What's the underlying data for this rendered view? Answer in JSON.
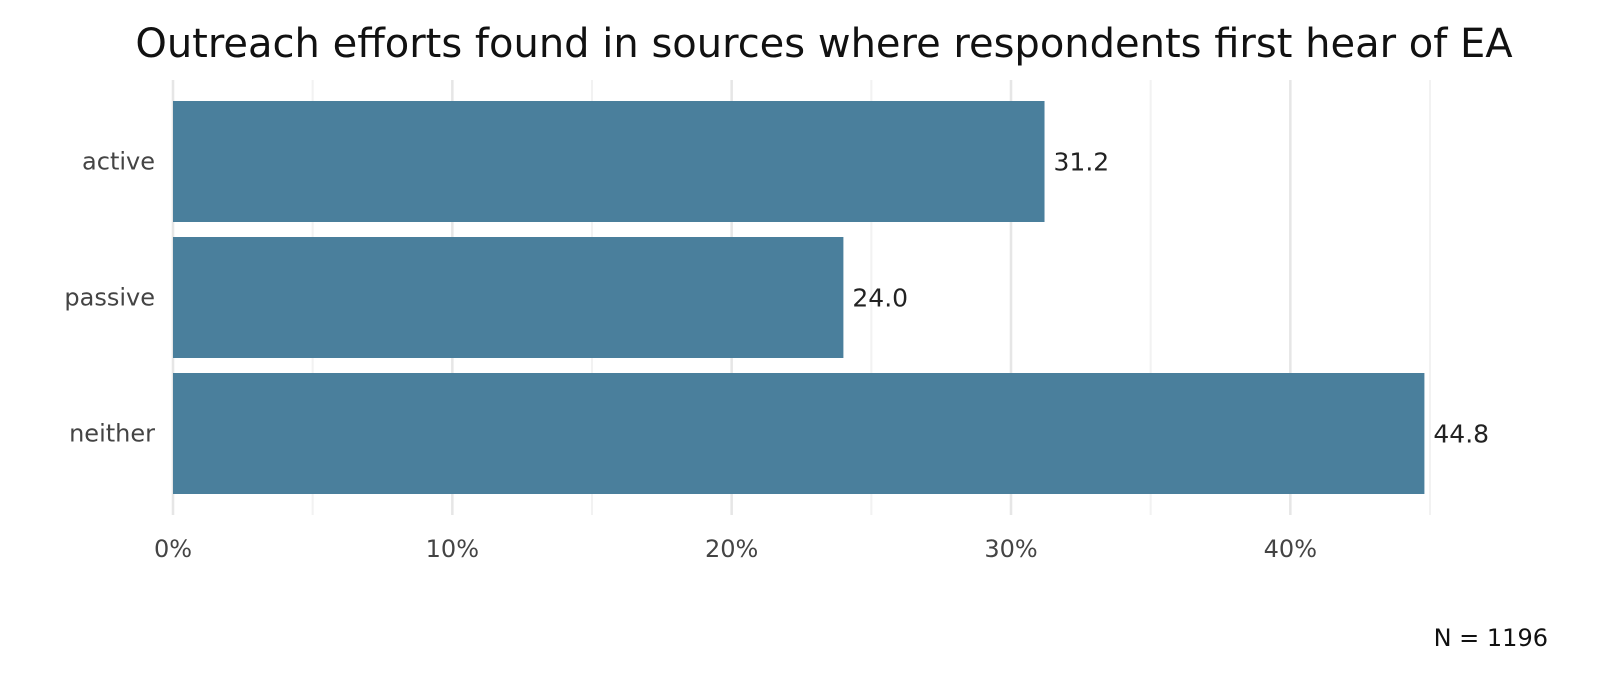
{
  "chart_data": {
    "type": "bar",
    "orientation": "horizontal",
    "title": "Outreach efforts found in sources where respondents first hear of EA",
    "categories": [
      "active",
      "passive",
      "neither"
    ],
    "values": [
      31.2,
      24.0,
      44.8
    ],
    "value_labels": [
      "31.2",
      "24.0",
      "44.8"
    ],
    "xlim": [
      0,
      45
    ],
    "xticks": [
      0,
      10,
      20,
      30,
      40
    ],
    "xtick_labels": [
      "0%",
      "10%",
      "20%",
      "30%",
      "40%"
    ],
    "xlabel": "",
    "ylabel": "",
    "grid": true,
    "legend": "none",
    "caption": "N = 1196",
    "colors": {
      "bar": "#4a7f9c",
      "grid_major": "#e6e6e6",
      "grid_minor": "#f2f2f2"
    }
  }
}
